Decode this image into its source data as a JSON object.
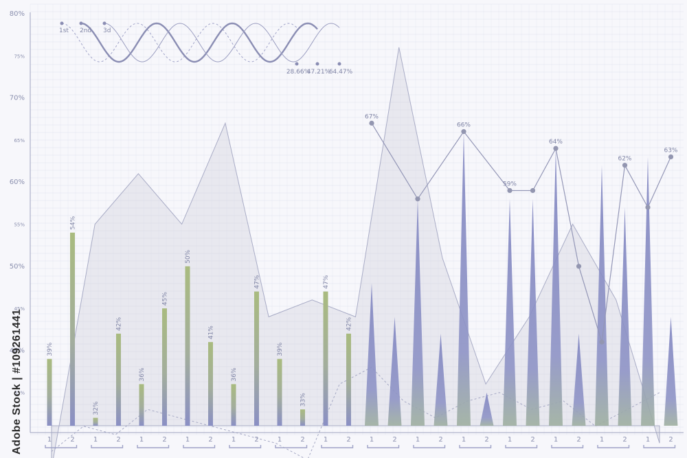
{
  "chart_data": {
    "type": "bar",
    "y_ticks": [
      "80%",
      "75%",
      "70%",
      "65%",
      "60%",
      "55%",
      "50%",
      "45%",
      "40%",
      "35%"
    ],
    "ylim": [
      30,
      80
    ],
    "x_tick_labels": [
      "1",
      "2",
      "1",
      "2",
      "1",
      "2",
      "1",
      "2",
      "1",
      "2",
      "1",
      "2",
      "1",
      "2",
      "1",
      "2",
      "1",
      "2",
      "1",
      "2",
      "1",
      "2",
      "1",
      "2",
      "1",
      "2",
      "1",
      "2"
    ],
    "green_bars": {
      "labels": [
        "39%",
        "54%",
        "32%",
        "42%",
        "36%",
        "45%",
        "50%",
        "41%",
        "36%",
        "47%",
        "39%",
        "33%",
        "47%",
        "42%"
      ],
      "values": [
        39,
        54,
        32,
        42,
        36,
        45,
        50,
        41,
        36,
        47,
        39,
        33,
        47,
        42
      ]
    },
    "spike_values": [
      48,
      44,
      58,
      42,
      66,
      35,
      58,
      58,
      64,
      42,
      62,
      57,
      63,
      44
    ],
    "line_points": {
      "values": [
        67,
        null,
        58,
        null,
        66,
        null,
        59,
        59,
        64,
        50,
        41,
        62,
        57,
        63
      ],
      "labels": [
        "67%",
        "",
        "",
        "",
        "66%",
        "",
        "59%",
        "",
        "64%",
        "",
        "",
        "62%",
        "",
        "63%"
      ]
    },
    "area_profile": [
      26,
      55,
      61,
      55,
      67,
      44,
      46,
      44,
      76,
      51,
      36,
      44,
      55,
      46,
      29
    ],
    "dashed_profile": [
      28,
      31,
      30,
      33,
      32,
      31,
      30,
      29,
      27,
      36,
      38,
      34,
      32,
      34,
      35,
      33,
      34,
      31,
      33,
      35
    ],
    "wave_legend": {
      "series_labels": [
        "1st",
        "2nd",
        "3d"
      ],
      "end_labels": [
        "28.66%",
        "47.21%",
        "64.47%"
      ]
    },
    "colors": {
      "green": "#a9bb7f",
      "blue": "#8a8fc4",
      "line": "#9396b6",
      "grid": "#dfe1ee",
      "axis": "#9ea2bf"
    },
    "watermark": "Adobe Stock | #109261441"
  }
}
